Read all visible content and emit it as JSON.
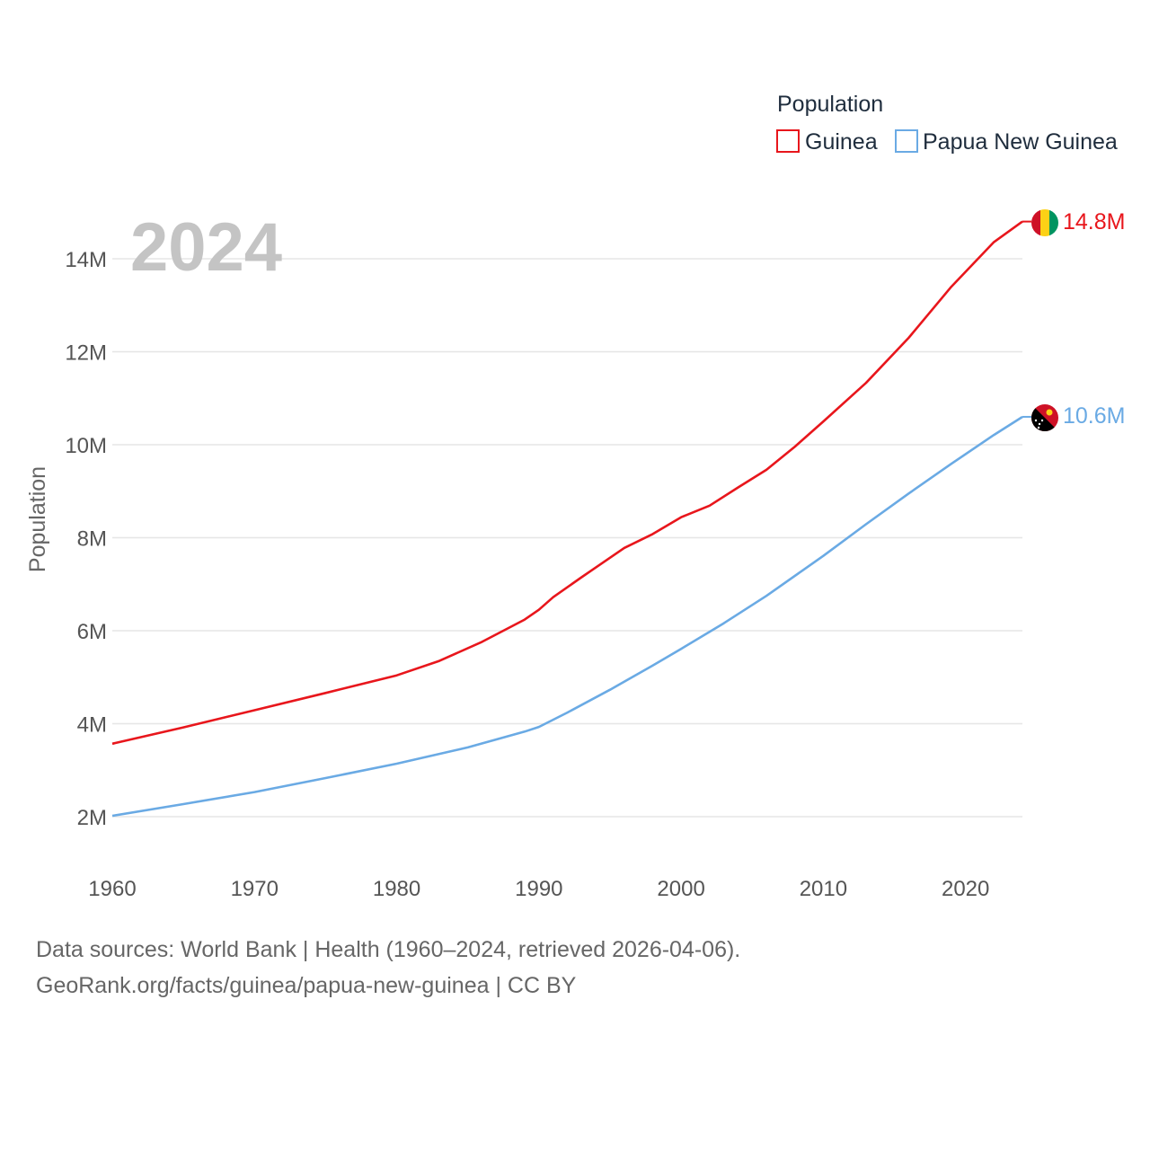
{
  "chart_data": {
    "type": "line",
    "title": "Population",
    "ylabel": "Population",
    "xlabel": "",
    "year_overlay": "2024",
    "xlim": [
      1960,
      2024
    ],
    "ylim": [
      1000000,
      15500000
    ],
    "x_ticks": [
      1960,
      1970,
      1980,
      1990,
      2000,
      2010,
      2020
    ],
    "x_tick_labels": [
      "1960",
      "1970",
      "1980",
      "1990",
      "2000",
      "2010",
      "2020"
    ],
    "y_ticks": [
      2000000,
      4000000,
      6000000,
      8000000,
      10000000,
      12000000,
      14000000
    ],
    "y_tick_labels": [
      "2M",
      "4M",
      "6M",
      "8M",
      "10M",
      "12M",
      "14M"
    ],
    "grid": true,
    "legend": {
      "title": "Population",
      "placement": "top-right"
    },
    "series": [
      {
        "name": "Guinea",
        "color": "#e8161c",
        "end_label": "14.8M",
        "flag": "guinea-flag",
        "points": [
          [
            1960,
            3570000
          ],
          [
            1965,
            3920000
          ],
          [
            1970,
            4290000
          ],
          [
            1975,
            4660000
          ],
          [
            1980,
            5040000
          ],
          [
            1983,
            5350000
          ],
          [
            1986,
            5760000
          ],
          [
            1989,
            6240000
          ],
          [
            1990,
            6450000
          ],
          [
            1991,
            6720000
          ],
          [
            1993,
            7150000
          ],
          [
            1996,
            7780000
          ],
          [
            1998,
            8080000
          ],
          [
            2000,
            8440000
          ],
          [
            2002,
            8690000
          ],
          [
            2004,
            9080000
          ],
          [
            2006,
            9460000
          ],
          [
            2008,
            9960000
          ],
          [
            2010,
            10500000
          ],
          [
            2013,
            11330000
          ],
          [
            2016,
            12300000
          ],
          [
            2019,
            13400000
          ],
          [
            2022,
            14360000
          ],
          [
            2024,
            14800000
          ]
        ]
      },
      {
        "name": "Papua New Guinea",
        "color": "#6aaae4",
        "end_label": "10.6M",
        "flag": "papua-new-guinea-flag",
        "points": [
          [
            1960,
            2020000
          ],
          [
            1965,
            2270000
          ],
          [
            1970,
            2530000
          ],
          [
            1975,
            2830000
          ],
          [
            1980,
            3140000
          ],
          [
            1985,
            3490000
          ],
          [
            1989,
            3830000
          ],
          [
            1990,
            3930000
          ],
          [
            1992,
            4240000
          ],
          [
            1995,
            4730000
          ],
          [
            1998,
            5250000
          ],
          [
            2000,
            5610000
          ],
          [
            2003,
            6160000
          ],
          [
            2006,
            6750000
          ],
          [
            2010,
            7610000
          ],
          [
            2013,
            8290000
          ],
          [
            2016,
            8950000
          ],
          [
            2019,
            9590000
          ],
          [
            2022,
            10210000
          ],
          [
            2024,
            10600000
          ]
        ]
      }
    ]
  },
  "footer": {
    "source_line": "Data sources: World Bank | Health (1960–2024, retrieved 2026-04-06).",
    "url_line": "GeoRank.org/facts/guinea/papua-new-guinea | CC BY"
  }
}
